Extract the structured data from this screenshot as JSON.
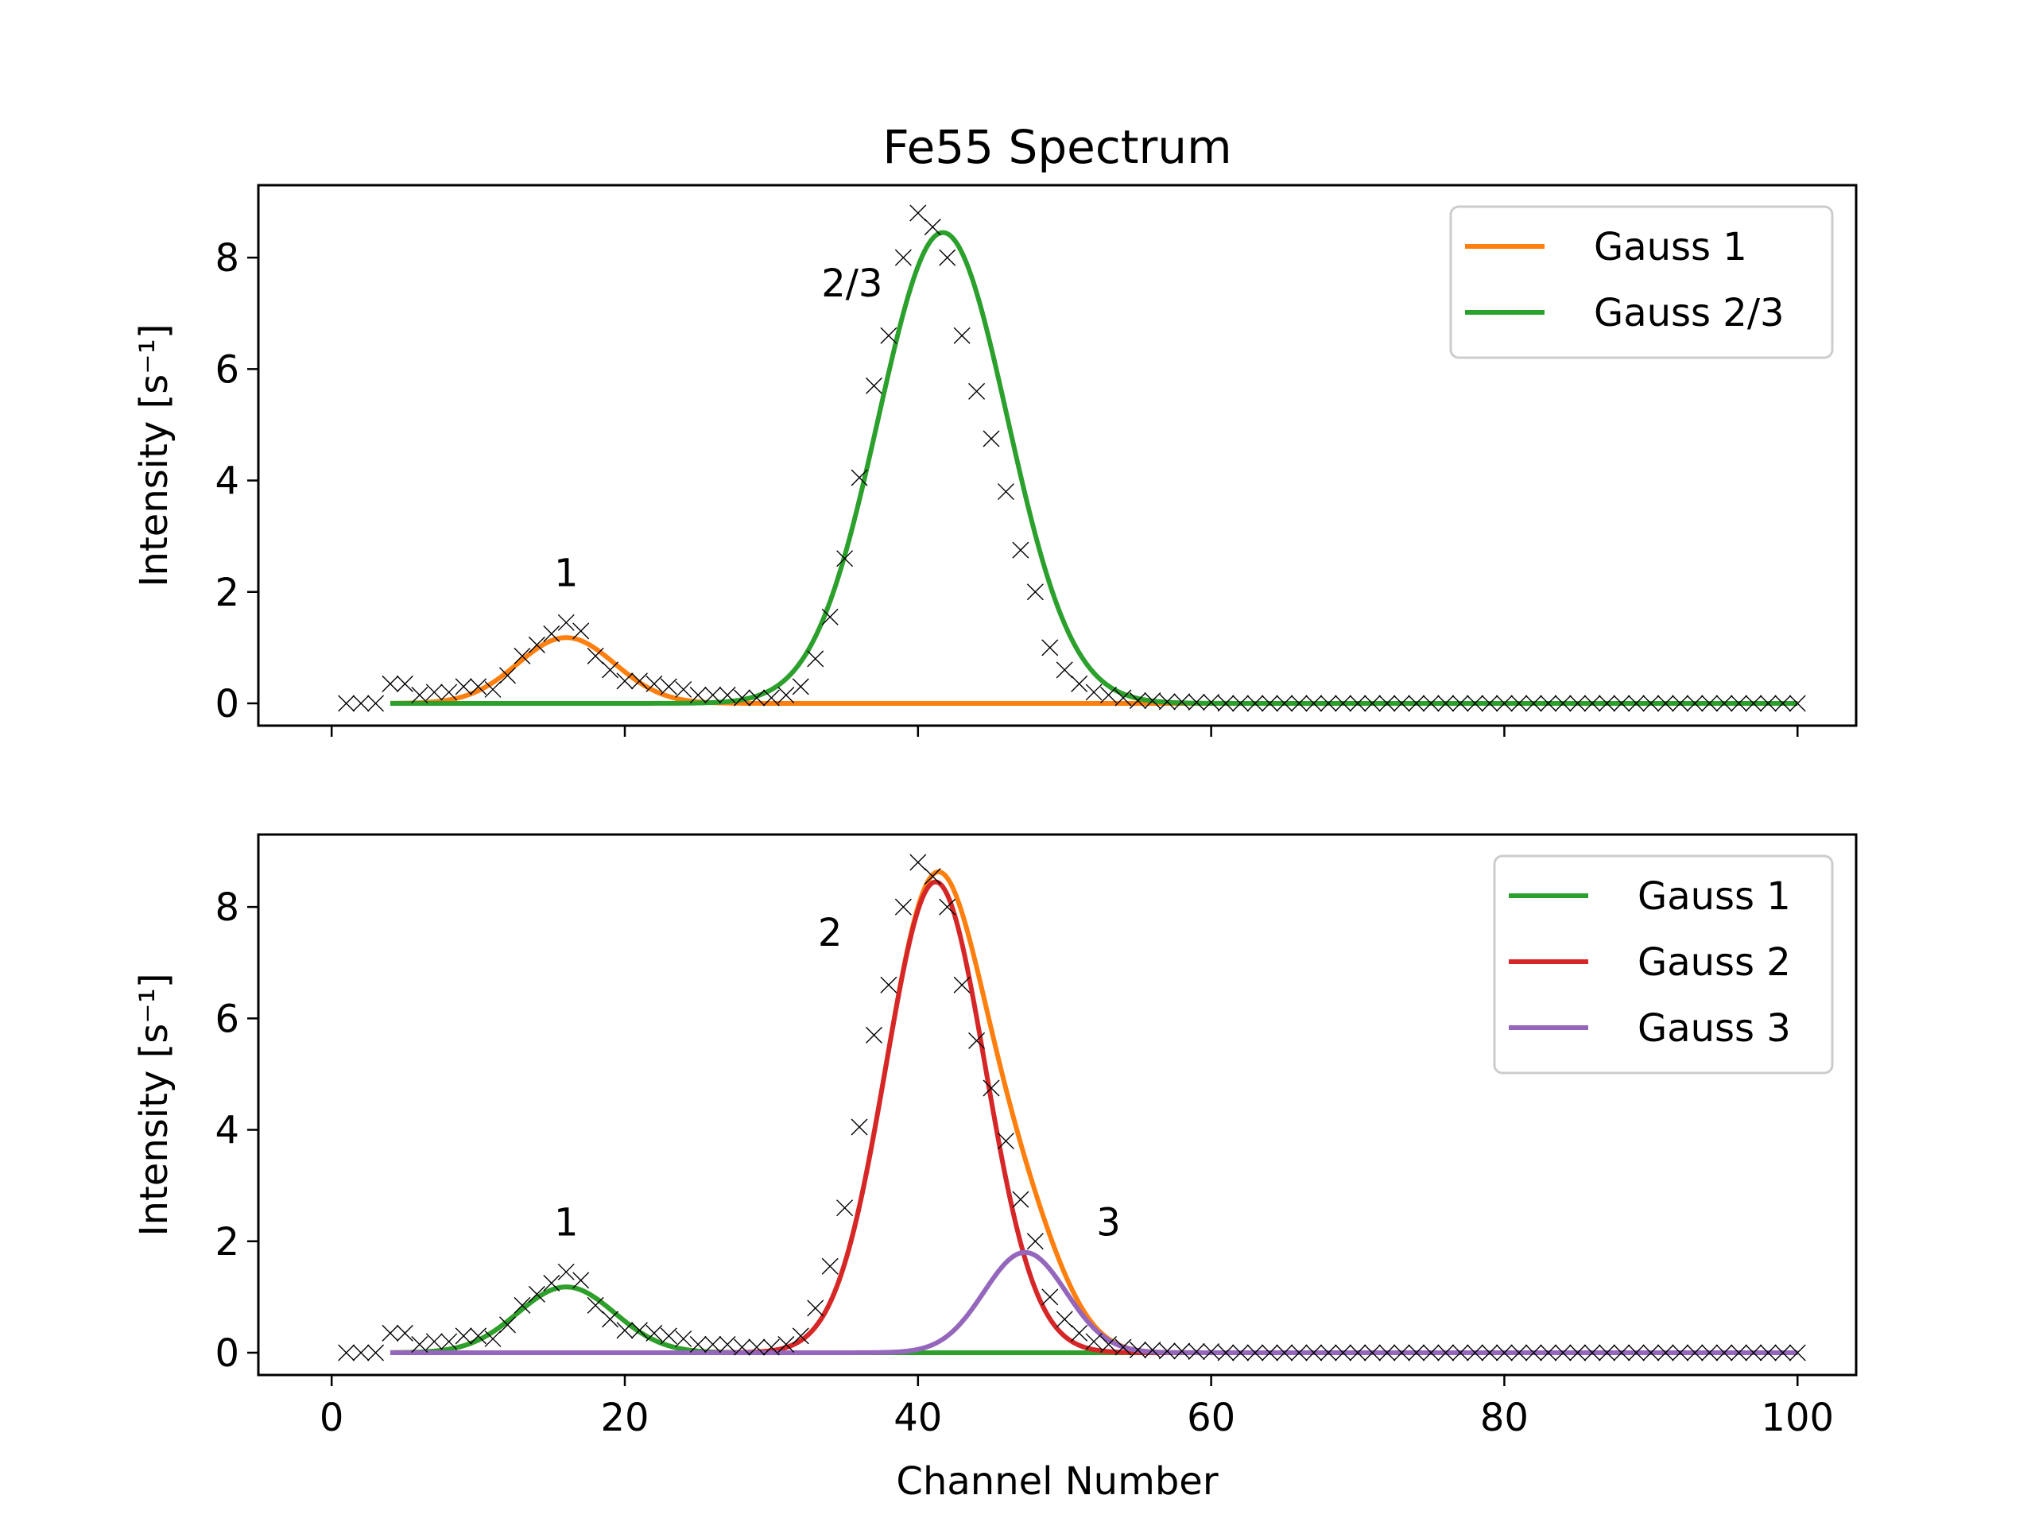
{
  "chart_data": [
    {
      "type": "line",
      "title": "Fe55 Spectrum",
      "xlabel": "",
      "ylabel": "Intensity [s⁻¹]",
      "xlim": [
        -5,
        104
      ],
      "ylim": [
        -0.4,
        9.3
      ],
      "xticks": [
        0,
        20,
        40,
        60,
        80,
        100
      ],
      "xtick_labels_shown": false,
      "yticks": [
        0,
        2,
        4,
        6,
        8
      ],
      "ytick_labels": [
        "0",
        "2",
        "4",
        "6",
        "8"
      ],
      "legend": {
        "placement": "top-right",
        "entries": [
          "Gauss 1",
          "Gauss 2/3"
        ]
      },
      "series": [
        {
          "name": "Gauss 1",
          "kind": "gaussian",
          "color": "#ff7f0e",
          "amplitude": 1.18,
          "center": 16.0,
          "sigma": 3.3,
          "x_range": [
            4,
            100
          ]
        },
        {
          "name": "Gauss 2/3",
          "kind": "gaussian",
          "color": "#2ca02c",
          "amplitude": 8.45,
          "center": 41.7,
          "sigma": 4.4,
          "x_range": [
            4,
            100
          ]
        }
      ],
      "annotations": [
        {
          "text": "1",
          "x": 16,
          "y": 2.1
        },
        {
          "text": "2/3",
          "x": 35.5,
          "y": 7.3
        }
      ],
      "data_markers": {
        "marker": "x",
        "color": "#000000"
      }
    },
    {
      "type": "line",
      "title": "",
      "xlabel": "Channel Number",
      "ylabel": "Intensity [s⁻¹]",
      "xlim": [
        -5,
        104
      ],
      "ylim": [
        -0.4,
        9.3
      ],
      "xticks": [
        0,
        20,
        40,
        60,
        80,
        100
      ],
      "xtick_labels": [
        "0",
        "20",
        "40",
        "60",
        "80",
        "100"
      ],
      "yticks": [
        0,
        2,
        4,
        6,
        8
      ],
      "ytick_labels": [
        "0",
        "2",
        "4",
        "6",
        "8"
      ],
      "legend": {
        "placement": "top-right",
        "entries": [
          "Gauss 1",
          "Gauss 2",
          "Gauss 3"
        ]
      },
      "series": [
        {
          "name": "",
          "kind": "sum",
          "color": "#ff7f0e",
          "components": [
            "Gauss 1",
            "Gauss 2",
            "Gauss 3"
          ],
          "x_range": [
            4,
            100
          ]
        },
        {
          "name": "Gauss 1",
          "kind": "gaussian",
          "color": "#2ca02c",
          "amplitude": 1.18,
          "center": 16.0,
          "sigma": 3.3,
          "x_range": [
            4,
            100
          ]
        },
        {
          "name": "Gauss 2",
          "kind": "gaussian",
          "color": "#d62728",
          "amplitude": 8.45,
          "center": 41.2,
          "sigma": 3.4,
          "x_range": [
            4,
            100
          ]
        },
        {
          "name": "Gauss 3",
          "kind": "gaussian",
          "color": "#9467bd",
          "amplitude": 1.8,
          "center": 47.3,
          "sigma": 2.8,
          "x_range": [
            4,
            100
          ]
        }
      ],
      "annotations": [
        {
          "text": "1",
          "x": 16,
          "y": 2.1
        },
        {
          "text": "2",
          "x": 34,
          "y": 7.3
        },
        {
          "text": "3",
          "x": 53,
          "y": 2.1
        }
      ],
      "data_markers": {
        "marker": "x",
        "color": "#000000"
      }
    }
  ],
  "data_points": {
    "x": [
      1,
      2,
      3,
      4,
      5,
      6,
      7,
      8,
      9,
      10,
      11,
      12,
      13,
      14,
      15,
      16,
      17,
      18,
      19,
      20,
      21,
      22,
      23,
      24,
      25,
      26,
      27,
      28,
      29,
      30,
      31,
      32,
      33,
      34,
      35,
      36,
      37,
      38,
      39,
      40,
      41,
      42,
      43,
      44,
      45,
      46,
      47,
      48,
      49,
      50,
      51,
      52,
      53,
      54,
      55,
      56,
      57,
      58,
      59,
      60,
      61,
      62,
      63,
      64,
      65,
      66,
      67,
      68,
      69,
      70,
      71,
      72,
      73,
      74,
      75,
      76,
      77,
      78,
      79,
      80,
      81,
      82,
      83,
      84,
      85,
      86,
      87,
      88,
      89,
      90,
      91,
      92,
      93,
      94,
      95,
      96,
      97,
      98,
      99,
      100
    ],
    "y": [
      0.0,
      0.0,
      0.0,
      0.35,
      0.35,
      0.15,
      0.2,
      0.2,
      0.3,
      0.3,
      0.25,
      0.5,
      0.85,
      1.05,
      1.25,
      1.45,
      1.3,
      0.85,
      0.6,
      0.4,
      0.4,
      0.35,
      0.3,
      0.25,
      0.15,
      0.15,
      0.15,
      0.1,
      0.1,
      0.1,
      0.15,
      0.3,
      0.8,
      1.55,
      2.6,
      4.05,
      5.7,
      6.6,
      8.0,
      8.8,
      8.55,
      8.0,
      6.6,
      5.6,
      4.75,
      3.8,
      2.75,
      2.0,
      1.0,
      0.6,
      0.35,
      0.2,
      0.15,
      0.1,
      0.05,
      0.05,
      0.03,
      0.03,
      0.02,
      0.02,
      0.0,
      0.0,
      0.0,
      0.0,
      0.0,
      0.0,
      0.0,
      0.0,
      0.0,
      0.0,
      0.0,
      0.0,
      0.0,
      0.0,
      0.0,
      0.0,
      0.0,
      0.0,
      0.0,
      0.0,
      0.0,
      0.0,
      0.0,
      0.0,
      0.0,
      0.0,
      0.0,
      0.0,
      0.0,
      0.0,
      0.0,
      0.0,
      0.0,
      0.0,
      0.0,
      0.0,
      0.0,
      0.0,
      0.0,
      0.0
    ]
  }
}
